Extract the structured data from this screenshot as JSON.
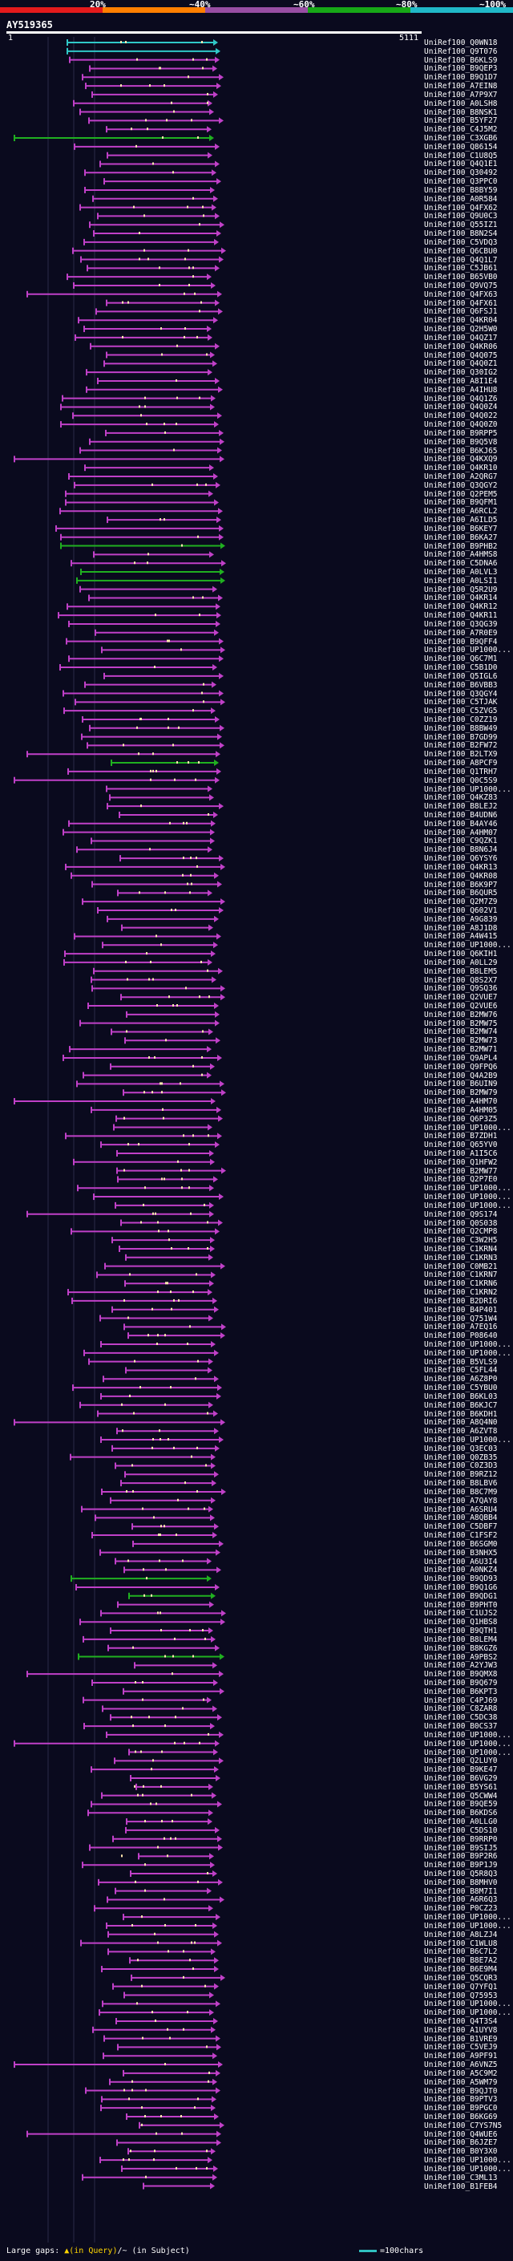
{
  "legend": {
    "items": [
      {
        "label": "20%",
        "color": "#e41a1c"
      },
      {
        "label": "~40%",
        "color": "#ff7f00"
      },
      {
        "label": "~60%",
        "color": "#984ea3"
      },
      {
        "label": "~80%",
        "color": "#17a817"
      },
      {
        "label": "~100%",
        "color": "#20b8c8"
      }
    ]
  },
  "query": {
    "name": "AY519365",
    "start": "1",
    "end": "5111"
  },
  "footer": {
    "gaps_text": "Large gaps: ",
    "gap_query": "▲(in Query)",
    "gap_subject": "/~ (in Subject)",
    "scale_text": "=100chars"
  },
  "hits": [
    {
      "id": "UniRef100_Q0WN18",
      "color": "cyan"
    },
    {
      "id": "UniRef100_Q9T076",
      "color": "cyan"
    },
    {
      "id": "UniRef100_B6KLS9",
      "color": "magenta"
    },
    {
      "id": "UniRef100_B9QEP3",
      "color": "magenta"
    },
    {
      "id": "UniRef100_B9Q1D7",
      "color": "magenta"
    },
    {
      "id": "UniRef100_A7EIN8",
      "color": "magenta"
    },
    {
      "id": "UniRef100_A7P9X7",
      "color": "magenta"
    },
    {
      "id": "UniRef100_A0LSH8",
      "color": "magenta"
    },
    {
      "id": "UniRef100_B8NSK1",
      "color": "magenta"
    },
    {
      "id": "UniRef100_B5YF27",
      "color": "magenta"
    },
    {
      "id": "UniRef100_C4J5M2",
      "color": "magenta"
    },
    {
      "id": "UniRef100_C3XGB6",
      "color": "green"
    },
    {
      "id": "UniRef100_Q86154",
      "color": "magenta"
    },
    {
      "id": "UniRef100_C1U8Q5",
      "color": "magenta"
    },
    {
      "id": "UniRef100_Q4Q1E1",
      "color": "magenta"
    },
    {
      "id": "UniRef100_Q30492",
      "color": "magenta"
    },
    {
      "id": "UniRef100_Q3PPC0",
      "color": "magenta"
    },
    {
      "id": "UniRef100_B8BY59",
      "color": "magenta"
    },
    {
      "id": "UniRef100_A0R584",
      "color": "magenta"
    },
    {
      "id": "UniRef100_Q4FX62",
      "color": "magenta"
    },
    {
      "id": "UniRef100_Q9U0C3",
      "color": "magenta"
    },
    {
      "id": "UniRef100_Q55IZ1",
      "color": "magenta"
    },
    {
      "id": "UniRef100_B8N2S4",
      "color": "magenta"
    },
    {
      "id": "UniRef100_C5VDQ3",
      "color": "magenta"
    },
    {
      "id": "UniRef100_Q6CBU0",
      "color": "magenta"
    },
    {
      "id": "UniRef100_Q4Q1L7",
      "color": "magenta"
    },
    {
      "id": "UniRef100_C5JB61",
      "color": "magenta"
    },
    {
      "id": "UniRef100_B65VB0",
      "color": "magenta"
    },
    {
      "id": "UniRef100_Q9VQ75",
      "color": "magenta"
    },
    {
      "id": "UniRef100_Q4FX63",
      "color": "magenta"
    },
    {
      "id": "UniRef100_Q4FX61",
      "color": "magenta"
    },
    {
      "id": "UniRef100_Q6FSJ1",
      "color": "magenta"
    },
    {
      "id": "UniRef100_Q4KR04",
      "color": "magenta"
    },
    {
      "id": "UniRef100_Q2H5W0",
      "color": "magenta"
    },
    {
      "id": "UniRef100_Q4QZ17",
      "color": "magenta"
    },
    {
      "id": "UniRef100_Q4KR06",
      "color": "magenta"
    },
    {
      "id": "UniRef100_Q4Q075",
      "color": "magenta"
    },
    {
      "id": "UniRef100_Q4Q0Z1",
      "color": "magenta"
    },
    {
      "id": "UniRef100_Q30IG2",
      "color": "magenta"
    },
    {
      "id": "UniRef100_A8I1E4",
      "color": "magenta"
    },
    {
      "id": "UniRef100_A4IHU8",
      "color": "magenta"
    },
    {
      "id": "UniRef100_Q4Q1Z6",
      "color": "magenta"
    },
    {
      "id": "UniRef100_Q4Q0Z4",
      "color": "magenta"
    },
    {
      "id": "UniRef100_Q4Q022",
      "color": "magenta"
    },
    {
      "id": "UniRef100_Q4Q0Z0",
      "color": "magenta"
    },
    {
      "id": "UniRef100_B9RPP5",
      "color": "magenta"
    },
    {
      "id": "UniRef100_B9Q5V8",
      "color": "magenta"
    },
    {
      "id": "UniRef100_B6KJ65",
      "color": "magenta"
    },
    {
      "id": "UniRef100_Q4KXQ9",
      "color": "magenta"
    },
    {
      "id": "UniRef100_Q4KR10",
      "color": "magenta"
    },
    {
      "id": "UniRef100_A2QRG7",
      "color": "magenta"
    },
    {
      "id": "UniRef100_Q3QGY2",
      "color": "magenta"
    },
    {
      "id": "UniRef100_Q2PEM5",
      "color": "magenta"
    },
    {
      "id": "UniRef100_B9QFM1",
      "color": "magenta"
    },
    {
      "id": "UniRef100_A6RCL2",
      "color": "magenta"
    },
    {
      "id": "UniRef100_A6ILD5",
      "color": "magenta"
    },
    {
      "id": "UniRef100_B6KEY7",
      "color": "magenta"
    },
    {
      "id": "UniRef100_B6KA27",
      "color": "magenta"
    },
    {
      "id": "UniRef100_B9PHB2",
      "color": "green"
    },
    {
      "id": "UniRef100_A4HMS8",
      "color": "magenta"
    },
    {
      "id": "UniRef100_C5DNA6",
      "color": "magenta"
    },
    {
      "id": "UniRef100_A0LVL3",
      "color": "green"
    },
    {
      "id": "UniRef100_A0LSI1",
      "color": "green"
    },
    {
      "id": "UniRef100_Q5R2U9",
      "color": "magenta"
    },
    {
      "id": "UniRef100_Q4KR14",
      "color": "magenta"
    },
    {
      "id": "UniRef100_Q4KR12",
      "color": "magenta"
    },
    {
      "id": "UniRef100_Q4KR11",
      "color": "magenta"
    },
    {
      "id": "UniRef100_Q3QG39",
      "color": "magenta"
    },
    {
      "id": "UniRef100_A7R0E9",
      "color": "magenta"
    },
    {
      "id": "UniRef100_B9QFF4",
      "color": "magenta"
    },
    {
      "id": "UniRef100_UP1000...",
      "color": "magenta"
    },
    {
      "id": "UniRef100_Q6C7M1",
      "color": "magenta"
    },
    {
      "id": "UniRef100_C5B1D0",
      "color": "magenta"
    },
    {
      "id": "UniRef100_Q5IGL6",
      "color": "magenta"
    },
    {
      "id": "UniRef100_B6VBB3",
      "color": "magenta"
    },
    {
      "id": "UniRef100_Q3QGY4",
      "color": "magenta"
    },
    {
      "id": "UniRef100_C5TJAK",
      "color": "magenta"
    },
    {
      "id": "UniRef100_C5ZVG5",
      "color": "magenta"
    },
    {
      "id": "UniRef100_C0ZZ19",
      "color": "magenta"
    },
    {
      "id": "UniRef100_B8BW49",
      "color": "magenta"
    },
    {
      "id": "UniRef100_B7GD99",
      "color": "magenta"
    },
    {
      "id": "UniRef100_B2FW72",
      "color": "magenta"
    },
    {
      "id": "UniRef100_B2LTX9",
      "color": "magenta"
    },
    {
      "id": "UniRef100_A8PCF9",
      "color": "green"
    },
    {
      "id": "UniRef100_Q1TRH7",
      "color": "magenta"
    },
    {
      "id": "UniRef100_Q0C5S9",
      "color": "magenta"
    },
    {
      "id": "UniRef100_UP1000...",
      "color": "magenta"
    },
    {
      "id": "UniRef100_Q4KZ83",
      "color": "magenta"
    },
    {
      "id": "UniRef100_B8LEJ2",
      "color": "magenta"
    },
    {
      "id": "UniRef100_B4UDN6",
      "color": "magenta"
    },
    {
      "id": "UniRef100_B4AY46",
      "color": "magenta"
    },
    {
      "id": "UniRef100_A4HM07",
      "color": "magenta"
    },
    {
      "id": "UniRef100_C9QZK1",
      "color": "magenta"
    },
    {
      "id": "UniRef100_B8N6J4",
      "color": "magenta"
    },
    {
      "id": "UniRef100_Q6YSY6",
      "color": "magenta"
    },
    {
      "id": "UniRef100_Q4KR13",
      "color": "magenta"
    },
    {
      "id": "UniRef100_Q4KR08",
      "color": "magenta"
    },
    {
      "id": "UniRef100_B6K9P7",
      "color": "magenta"
    },
    {
      "id": "UniRef100_B6QUR5",
      "color": "magenta"
    },
    {
      "id": "UniRef100_Q2M7Z9",
      "color": "magenta"
    },
    {
      "id": "UniRef100_Q602V1",
      "color": "magenta"
    },
    {
      "id": "UniRef100_A9G839",
      "color": "magenta"
    },
    {
      "id": "UniRef100_A8J1D8",
      "color": "magenta"
    },
    {
      "id": "UniRef100_A4W415",
      "color": "magenta"
    },
    {
      "id": "UniRef100_UP1000...",
      "color": "magenta"
    },
    {
      "id": "UniRef100_Q6KIH1",
      "color": "magenta"
    },
    {
      "id": "UniRef100_A0LL29",
      "color": "magenta"
    },
    {
      "id": "UniRef100_B8LEM5",
      "color": "magenta"
    },
    {
      "id": "UniRef100_Q8S2X7",
      "color": "magenta"
    },
    {
      "id": "UniRef100_Q9SQ36",
      "color": "magenta"
    },
    {
      "id": "UniRef100_Q2VUE7",
      "color": "magenta"
    },
    {
      "id": "UniRef100_Q2VUE6",
      "color": "magenta"
    },
    {
      "id": "UniRef100_B2MW76",
      "color": "magenta"
    },
    {
      "id": "UniRef100_B2MW75",
      "color": "magenta"
    },
    {
      "id": "UniRef100_B2MW74",
      "color": "magenta"
    },
    {
      "id": "UniRef100_B2MW73",
      "color": "magenta"
    },
    {
      "id": "UniRef100_B2MW71",
      "color": "magenta"
    },
    {
      "id": "UniRef100_Q9APL4",
      "color": "magenta"
    },
    {
      "id": "UniRef100_Q9FPQ6",
      "color": "magenta"
    },
    {
      "id": "UniRef100_Q4A2B9",
      "color": "magenta"
    },
    {
      "id": "UniRef100_B6UIN9",
      "color": "magenta"
    },
    {
      "id": "UniRef100_B2MW79",
      "color": "magenta"
    },
    {
      "id": "UniRef100_A4HM70",
      "color": "magenta"
    },
    {
      "id": "UniRef100_A4HM05",
      "color": "magenta"
    },
    {
      "id": "UniRef100_Q6P3Z5",
      "color": "magenta"
    },
    {
      "id": "UniRef100_UP1000...",
      "color": "magenta"
    },
    {
      "id": "UniRef100_B7ZDH1",
      "color": "magenta"
    },
    {
      "id": "UniRef100_Q65YV0",
      "color": "magenta"
    },
    {
      "id": "UniRef100_A1I5C6",
      "color": "magenta"
    },
    {
      "id": "UniRef100_Q1HFW2",
      "color": "magenta"
    },
    {
      "id": "UniRef100_B2MW77",
      "color": "magenta"
    },
    {
      "id": "UniRef100_Q2P7E0",
      "color": "magenta"
    },
    {
      "id": "UniRef100_UP1000...",
      "color": "magenta"
    },
    {
      "id": "UniRef100_UP1000...",
      "color": "magenta"
    },
    {
      "id": "UniRef100_UP1000...",
      "color": "magenta"
    },
    {
      "id": "UniRef100_Q9S174",
      "color": "magenta"
    },
    {
      "id": "UniRef100_Q0S038",
      "color": "magenta"
    },
    {
      "id": "UniRef100_Q2CMP8",
      "color": "magenta"
    },
    {
      "id": "UniRef100_C3W2H5",
      "color": "magenta"
    },
    {
      "id": "UniRef100_C1KRN4",
      "color": "magenta"
    },
    {
      "id": "UniRef100_C1KRN3",
      "color": "magenta"
    },
    {
      "id": "UniRef100_C0MB21",
      "color": "magenta"
    },
    {
      "id": "UniRef100_C1KRN7",
      "color": "magenta"
    },
    {
      "id": "UniRef100_C1KRN6",
      "color": "magenta"
    },
    {
      "id": "UniRef100_C1KRN2",
      "color": "magenta"
    },
    {
      "id": "UniRef100_B2DRI6",
      "color": "magenta"
    },
    {
      "id": "UniRef100_B4P401",
      "color": "magenta"
    },
    {
      "id": "UniRef100_Q751W4",
      "color": "magenta"
    },
    {
      "id": "UniRef100_A7EQ16",
      "color": "magenta"
    },
    {
      "id": "UniRef100_P08640",
      "color": "magenta"
    },
    {
      "id": "UniRef100_UP1000...",
      "color": "magenta"
    },
    {
      "id": "UniRef100_UP1000...",
      "color": "magenta"
    },
    {
      "id": "UniRef100_B5VLS9",
      "color": "magenta"
    },
    {
      "id": "UniRef100_C5FL44",
      "color": "magenta"
    },
    {
      "id": "UniRef100_A6Z8P0",
      "color": "magenta"
    },
    {
      "id": "UniRef100_C5YBU0",
      "color": "magenta"
    },
    {
      "id": "UniRef100_B6KL03",
      "color": "magenta"
    },
    {
      "id": "UniRef100_B6KJC7",
      "color": "magenta"
    },
    {
      "id": "UniRef100_B6KDH1",
      "color": "magenta"
    },
    {
      "id": "UniRef100_A8Q4N0",
      "color": "magenta"
    },
    {
      "id": "UniRef100_A6ZVT8",
      "color": "magenta"
    },
    {
      "id": "UniRef100_UP1000...",
      "color": "magenta"
    },
    {
      "id": "UniRef100_Q3EC03",
      "color": "magenta"
    },
    {
      "id": "UniRef100_Q0ZB35",
      "color": "magenta"
    },
    {
      "id": "UniRef100_C0Z3D3",
      "color": "magenta"
    },
    {
      "id": "UniRef100_B9RZ12",
      "color": "magenta"
    },
    {
      "id": "UniRef100_B8LBV6",
      "color": "magenta"
    },
    {
      "id": "UniRef100_B8C7M9",
      "color": "magenta"
    },
    {
      "id": "UniRef100_A7QAY8",
      "color": "magenta"
    },
    {
      "id": "UniRef100_A6SRU4",
      "color": "magenta"
    },
    {
      "id": "UniRef100_A8QBB4",
      "color": "magenta"
    },
    {
      "id": "UniRef100_C5DBF7",
      "color": "magenta"
    },
    {
      "id": "UniRef100_C1FSF2",
      "color": "magenta"
    },
    {
      "id": "UniRef100_B6SGM0",
      "color": "magenta"
    },
    {
      "id": "UniRef100_B3NHX5",
      "color": "magenta"
    },
    {
      "id": "UniRef100_A6U3I4",
      "color": "magenta"
    },
    {
      "id": "UniRef100_A0NKZ4",
      "color": "magenta"
    },
    {
      "id": "UniRef100_B9QD93",
      "color": "green"
    },
    {
      "id": "UniRef100_B9Q1G6",
      "color": "magenta"
    },
    {
      "id": "UniRef100_B9QDG1",
      "color": "green"
    },
    {
      "id": "UniRef100_B9PHT0",
      "color": "magenta"
    },
    {
      "id": "UniRef100_C1UJS2",
      "color": "magenta"
    },
    {
      "id": "UniRef100_Q1HBS8",
      "color": "magenta"
    },
    {
      "id": "UniRef100_B9QTH1",
      "color": "magenta"
    },
    {
      "id": "UniRef100_B8LEM4",
      "color": "magenta"
    },
    {
      "id": "UniRef100_B8KGZ6",
      "color": "magenta"
    },
    {
      "id": "UniRef100_A9PBS2",
      "color": "green"
    },
    {
      "id": "UniRef100_A2YJW3",
      "color": "magenta"
    },
    {
      "id": "UniRef100_B9QMX8",
      "color": "magenta"
    },
    {
      "id": "UniRef100_B9Q679",
      "color": "magenta"
    },
    {
      "id": "UniRef100_B6KPT3",
      "color": "magenta"
    },
    {
      "id": "UniRef100_C4PJ69",
      "color": "magenta"
    },
    {
      "id": "UniRef100_C8ZAR8",
      "color": "magenta"
    },
    {
      "id": "UniRef100_C5DC38",
      "color": "magenta"
    },
    {
      "id": "UniRef100_B0CS37",
      "color": "magenta"
    },
    {
      "id": "UniRef100_UP1000...",
      "color": "magenta"
    },
    {
      "id": "UniRef100_UP1000...",
      "color": "magenta"
    },
    {
      "id": "UniRef100_UP1000...",
      "color": "magenta"
    },
    {
      "id": "UniRef100_Q2LUY0",
      "color": "magenta"
    },
    {
      "id": "UniRef100_B9KE47",
      "color": "magenta"
    },
    {
      "id": "UniRef100_B6VG29",
      "color": "magenta"
    },
    {
      "id": "UniRef100_B5YS61",
      "color": "magenta"
    },
    {
      "id": "UniRef100_Q5CWW4",
      "color": "magenta"
    },
    {
      "id": "UniRef100_B9QE59",
      "color": "magenta"
    },
    {
      "id": "UniRef100_B6KDS6",
      "color": "magenta"
    },
    {
      "id": "UniRef100_A0LLG0",
      "color": "magenta"
    },
    {
      "id": "UniRef100_C5DS10",
      "color": "magenta"
    },
    {
      "id": "UniRef100_B9RRP0",
      "color": "magenta"
    },
    {
      "id": "UniRef100_B9SIJ5",
      "color": "magenta"
    },
    {
      "id": "UniRef100_B9P2R6",
      "color": "magenta"
    },
    {
      "id": "UniRef100_B9P1J9",
      "color": "magenta"
    },
    {
      "id": "UniRef100_Q5R8Q3",
      "color": "magenta"
    },
    {
      "id": "UniRef100_B8MHV0",
      "color": "magenta"
    },
    {
      "id": "UniRef100_B8M7I1",
      "color": "magenta"
    },
    {
      "id": "UniRef100_A6R6Q3",
      "color": "magenta"
    },
    {
      "id": "UniRef100_P0CZ23",
      "color": "magenta"
    },
    {
      "id": "UniRef100_UP1000...",
      "color": "magenta"
    },
    {
      "id": "UniRef100_UP1000...",
      "color": "magenta"
    },
    {
      "id": "UniRef100_A8LZJ4",
      "color": "magenta"
    },
    {
      "id": "UniRef100_C1WLU8",
      "color": "magenta"
    },
    {
      "id": "UniRef100_B6C7L2",
      "color": "magenta"
    },
    {
      "id": "UniRef100_B8E7A2",
      "color": "magenta"
    },
    {
      "id": "UniRef100_B6E9M4",
      "color": "magenta"
    },
    {
      "id": "UniRef100_Q5CQR3",
      "color": "magenta"
    },
    {
      "id": "UniRef100_Q7YFQ1",
      "color": "magenta"
    },
    {
      "id": "UniRef100_Q75953",
      "color": "magenta"
    },
    {
      "id": "UniRef100_UP1000...",
      "color": "magenta"
    },
    {
      "id": "UniRef100_UP1000...",
      "color": "magenta"
    },
    {
      "id": "UniRef100_Q4T3S4",
      "color": "magenta"
    },
    {
      "id": "UniRef100_A1UYV8",
      "color": "magenta"
    },
    {
      "id": "UniRef100_B1VRE9",
      "color": "magenta"
    },
    {
      "id": "UniRef100_C5VEJ9",
      "color": "magenta"
    },
    {
      "id": "UniRef100_A9PF91",
      "color": "magenta"
    },
    {
      "id": "UniRef100_A6VNZ5",
      "color": "magenta"
    },
    {
      "id": "UniRef100_A5C9M2",
      "color": "magenta"
    },
    {
      "id": "UniRef100_A5WM79",
      "color": "magenta"
    },
    {
      "id": "UniRef100_B9QJT0",
      "color": "magenta"
    },
    {
      "id": "UniRef100_B9PTV3",
      "color": "magenta"
    },
    {
      "id": "UniRef100_B9PGC0",
      "color": "magenta"
    },
    {
      "id": "UniRef100_B6KG69",
      "color": "magenta"
    },
    {
      "id": "UniRef100_C7YS7N5",
      "color": "magenta"
    },
    {
      "id": "UniRef100_Q4WUE6",
      "color": "magenta"
    },
    {
      "id": "UniRef100_B6JZE7",
      "color": "magenta"
    },
    {
      "id": "UniRef100_B0Y3X0",
      "color": "magenta"
    },
    {
      "id": "UniRef100_UP1000...",
      "color": "magenta"
    },
    {
      "id": "UniRef100_UP1000...",
      "color": "magenta"
    },
    {
      "id": "UniRef100_C3ML13",
      "color": "magenta"
    },
    {
      "id": "UniRef100_B1FEB4",
      "color": "magenta"
    }
  ]
}
